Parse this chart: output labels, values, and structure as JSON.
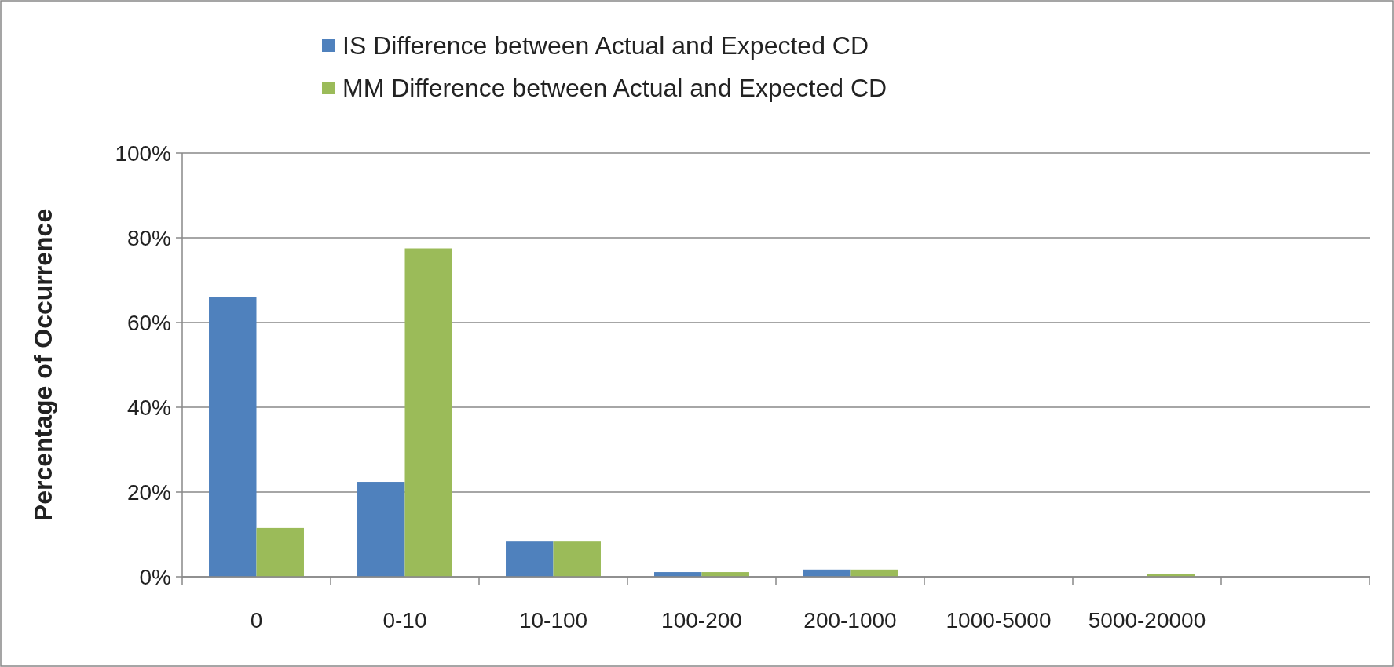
{
  "chart_data": {
    "type": "bar",
    "ylabel": "Percentage of Occurrence",
    "categories": [
      "0",
      "0-10",
      "10-100",
      "100-200",
      "200-1000",
      "1000-5000",
      "5000-20000",
      null
    ],
    "series": [
      {
        "name": "IS Difference between Actual and Expected CD",
        "color": "#4f81bd",
        "values": [
          66,
          22.4,
          8.3,
          1.1,
          1.7,
          0,
          0,
          0
        ]
      },
      {
        "name": "MM Difference between Actual and Expected CD",
        "color": "#9bbb59",
        "values": [
          11.5,
          77.5,
          8.3,
          1.1,
          1.7,
          0,
          0.6,
          0
        ]
      }
    ],
    "ylim": [
      0,
      100
    ],
    "yticks": [
      {
        "value": 0,
        "label": "0%"
      },
      {
        "value": 20,
        "label": "20%"
      },
      {
        "value": 40,
        "label": "40%"
      },
      {
        "value": 60,
        "label": "60%"
      },
      {
        "value": 80,
        "label": "80%"
      },
      {
        "value": 100,
        "label": "100%"
      }
    ],
    "grid": "y",
    "legend": "top"
  }
}
